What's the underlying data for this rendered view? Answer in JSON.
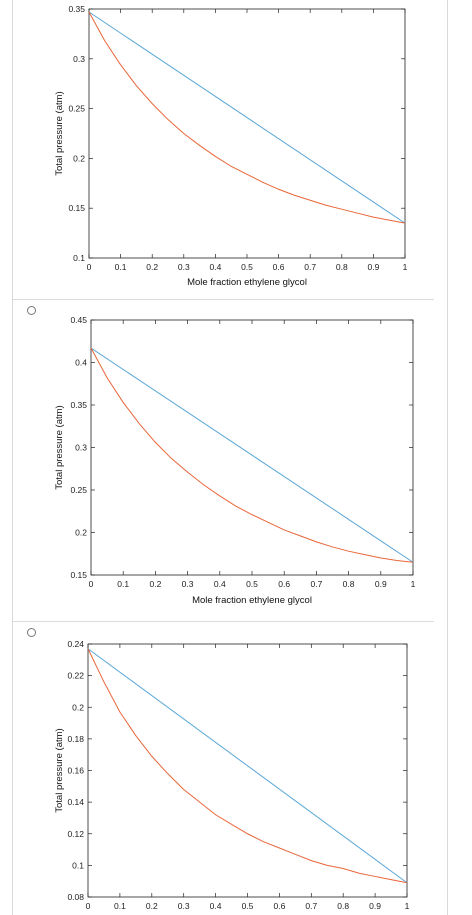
{
  "options": [
    {
      "selected": false
    },
    {
      "selected": false
    },
    {
      "selected": false
    }
  ],
  "colors": {
    "dew_curve": "#5aa7d8",
    "bubble_curve": "#e8663a",
    "axes": "#222222"
  },
  "chart_data": [
    {
      "type": "line",
      "xlabel": "Mole fraction ethylene glycol",
      "ylabel": "Total pressure (atm)",
      "xlim": [
        0,
        1
      ],
      "ylim": [
        0.1,
        0.35
      ],
      "x_ticks": [
        "0",
        "0.1",
        "0.2",
        "0.3",
        "0.4",
        "0.5",
        "0.6",
        "0.7",
        "0.8",
        "0.9",
        "1"
      ],
      "y_ticks": [
        "0.1",
        "0.15",
        "0.2",
        "0.25",
        "0.3",
        "0.35"
      ],
      "series": [
        {
          "color": "#5aa7d8",
          "x": [
            0,
            1
          ],
          "y": [
            0.347,
            0.135
          ]
        },
        {
          "color": "#e8663a",
          "x": [
            0,
            0.05,
            0.1,
            0.15,
            0.2,
            0.25,
            0.3,
            0.35,
            0.4,
            0.45,
            0.5,
            0.55,
            0.6,
            0.65,
            0.7,
            0.75,
            0.8,
            0.85,
            0.9,
            0.95,
            1
          ],
          "y": [
            0.347,
            0.318,
            0.294,
            0.273,
            0.255,
            0.239,
            0.225,
            0.213,
            0.202,
            0.192,
            0.184,
            0.176,
            0.169,
            0.163,
            0.158,
            0.153,
            0.149,
            0.145,
            0.141,
            0.138,
            0.135
          ]
        }
      ]
    },
    {
      "type": "line",
      "xlabel": "Mole fraction ethylene glycol",
      "ylabel": "Total pressure (atm)",
      "xlim": [
        0,
        1
      ],
      "ylim": [
        0.15,
        0.45
      ],
      "x_ticks": [
        "0",
        "0.1",
        "0.2",
        "0.3",
        "0.4",
        "0.5",
        "0.6",
        "0.7",
        "0.8",
        "0.9",
        "1"
      ],
      "y_ticks": [
        "0.15",
        "0.2",
        "0.25",
        "0.3",
        "0.35",
        "0.4",
        "0.45"
      ],
      "series": [
        {
          "color": "#5aa7d8",
          "x": [
            0,
            1
          ],
          "y": [
            0.417,
            0.165
          ]
        },
        {
          "color": "#e8663a",
          "x": [
            0,
            0.05,
            0.1,
            0.15,
            0.2,
            0.25,
            0.3,
            0.35,
            0.4,
            0.45,
            0.5,
            0.55,
            0.6,
            0.65,
            0.7,
            0.75,
            0.8,
            0.85,
            0.9,
            0.95,
            1
          ],
          "y": [
            0.417,
            0.382,
            0.353,
            0.328,
            0.306,
            0.287,
            0.271,
            0.256,
            0.243,
            0.231,
            0.221,
            0.212,
            0.203,
            0.196,
            0.189,
            0.183,
            0.178,
            0.174,
            0.17,
            0.167,
            0.165
          ]
        }
      ]
    },
    {
      "type": "line",
      "xlabel": "",
      "ylabel": "Total pressure (atm)",
      "xlim": [
        0,
        1
      ],
      "ylim": [
        0.08,
        0.24
      ],
      "x_ticks": [
        "0",
        "0.1",
        "0.2",
        "0.3",
        "0.4",
        "0.5",
        "0.6",
        "0.7",
        "0.8",
        "0.9",
        "1"
      ],
      "y_ticks": [
        "0.08",
        "0.1",
        "0.12",
        "0.14",
        "0.16",
        "0.18",
        "0.2",
        "0.22",
        "0.24"
      ],
      "series": [
        {
          "color": "#5aa7d8",
          "x": [
            0,
            1
          ],
          "y": [
            0.237,
            0.089
          ]
        },
        {
          "color": "#e8663a",
          "x": [
            0,
            0.05,
            0.1,
            0.15,
            0.2,
            0.25,
            0.3,
            0.35,
            0.4,
            0.45,
            0.5,
            0.55,
            0.6,
            0.65,
            0.7,
            0.75,
            0.8,
            0.85,
            0.9,
            0.95,
            1
          ],
          "y": [
            0.237,
            0.216,
            0.197,
            0.182,
            0.169,
            0.158,
            0.148,
            0.14,
            0.132,
            0.126,
            0.12,
            0.115,
            0.111,
            0.107,
            0.103,
            0.1,
            0.098,
            0.095,
            0.093,
            0.091,
            0.089
          ]
        }
      ]
    }
  ]
}
